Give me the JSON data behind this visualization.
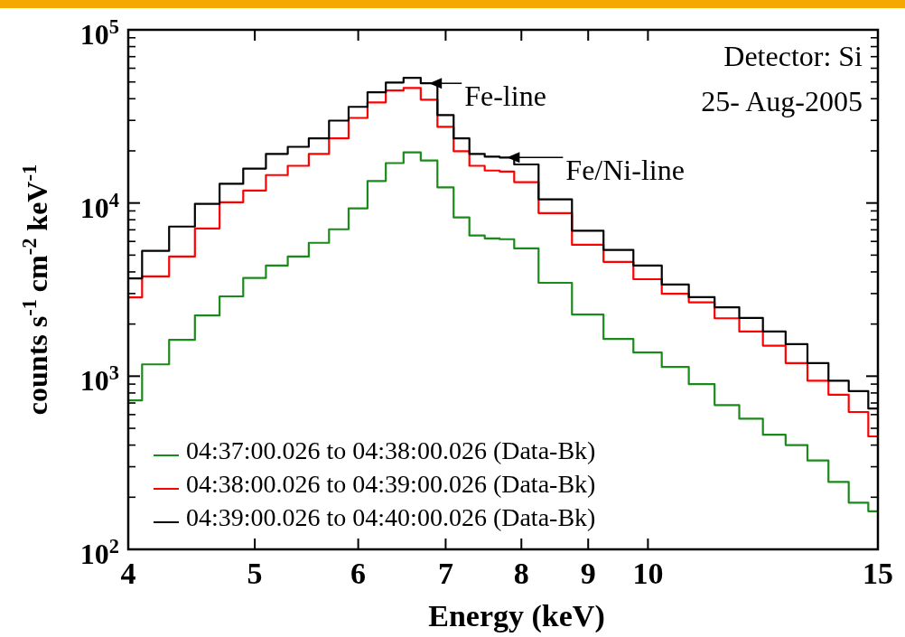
{
  "chart_data": {
    "type": "step",
    "xlabel": "Energy (keV)",
    "ylabel": "counts s$^{-1}$ cm$^{-2}$ keV$^{-1}$",
    "log": "xy",
    "xlim": [
      4,
      15
    ],
    "ylim": [
      100,
      100000
    ],
    "xticks": [
      4,
      5,
      6,
      7,
      8,
      9,
      10,
      15
    ],
    "yticks": [
      {
        "value": 100,
        "label": "10$^{2}$"
      },
      {
        "value": 1000,
        "label": "10$^{3}$"
      },
      {
        "value": 10000,
        "label": "10$^{4}$"
      },
      {
        "value": 100000,
        "label": "10$^{5}$"
      }
    ],
    "x": [
      4.0,
      4.2,
      4.4,
      4.6,
      4.8,
      5.0,
      5.2,
      5.4,
      5.6,
      5.8,
      6.0,
      6.2,
      6.4,
      6.6,
      6.8,
      7.0,
      7.2,
      7.4,
      7.6,
      7.8,
      8.0,
      8.5,
      9.0,
      9.5,
      10.0,
      10.5,
      11.0,
      11.5,
      12.0,
      12.5,
      13.0,
      13.5,
      14.0,
      14.5,
      15.0
    ],
    "series": [
      {
        "name": "04:37:00.026 to 04:38:00.026 (Data-Bk)",
        "color": "#1a8a1a",
        "values": [
          724,
          1170,
          1620,
          2240,
          2890,
          3690,
          4350,
          4910,
          5890,
          7050,
          9310,
          13400,
          17000,
          19600,
          17600,
          12300,
          8250,
          6490,
          6250,
          6180,
          5470,
          3460,
          2270,
          1640,
          1370,
          1130,
          899,
          681,
          568,
          459,
          400,
          326,
          245,
          186,
          166
        ]
      },
      {
        "name": "04:38:00.026 to 04:39:00.026 (Data-Bk)",
        "color": "#ff0000",
        "values": [
          2850,
          3770,
          4910,
          7130,
          10100,
          11800,
          14500,
          16400,
          19200,
          23600,
          31000,
          38100,
          44600,
          46200,
          39500,
          27500,
          19900,
          16400,
          15400,
          15200,
          13200,
          8750,
          5740,
          4570,
          3630,
          2990,
          2670,
          2160,
          1810,
          1500,
          1190,
          942,
          782,
          621,
          449
        ]
      },
      {
        "name": "04:39:00.026 to 04:40:00.026 (Data-Bk)",
        "color": "#000000",
        "values": [
          3670,
          5290,
          7310,
          9880,
          12900,
          15800,
          19200,
          21100,
          23600,
          29900,
          35900,
          43600,
          49600,
          52800,
          49100,
          32200,
          23600,
          19200,
          18500,
          18300,
          16700,
          10500,
          6920,
          5360,
          4350,
          3380,
          2860,
          2500,
          2170,
          1810,
          1530,
          1190,
          942,
          820,
          650
        ]
      }
    ],
    "annotations": [
      {
        "text": "Fe-line",
        "x": 6.8,
        "y": 49100
      },
      {
        "text": "Fe/Ni-line",
        "x": 7.8,
        "y": 18300
      },
      "Detector: Si",
      "25- Aug-2005"
    ],
    "legend": "bottom left"
  }
}
